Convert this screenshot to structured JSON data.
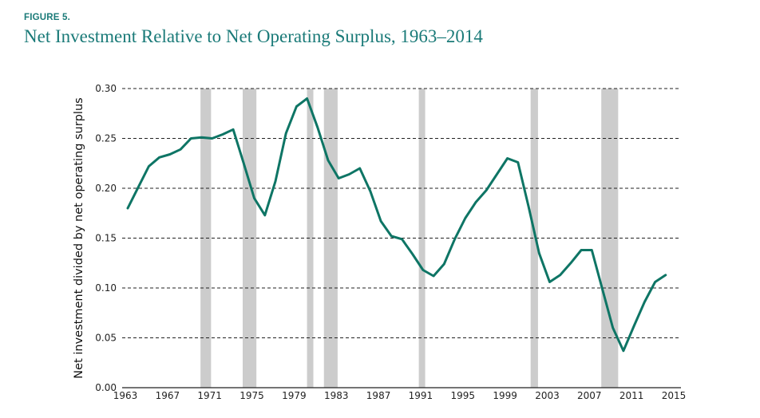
{
  "figure_label": "FIGURE 5.",
  "title": "Net Investment Relative to Net Operating Surplus, 1963–2014",
  "colors": {
    "title": "#1a7a78",
    "line": "#0e7565",
    "recession": "#cccccc",
    "grid": "#222222"
  },
  "chart_data": {
    "type": "line",
    "title": "Net Investment Relative to Net Operating Surplus, 1963–2014",
    "xlabel": "",
    "ylabel": "Net investment divided by net operating surplus",
    "xlim": [
      1963,
      2015
    ],
    "ylim": [
      0,
      0.3
    ],
    "grid": "horizontal dashed",
    "x_ticks": [
      1963,
      1967,
      1971,
      1975,
      1979,
      1983,
      1987,
      1991,
      1995,
      1999,
      2003,
      2007,
      2011,
      2015
    ],
    "x_tick_labels": [
      "1963",
      "1967",
      "1971",
      "1975",
      "1979",
      "1983",
      "1987",
      "1991",
      "1995",
      "1999",
      "2003",
      "2007",
      "2011",
      "2015"
    ],
    "y_ticks": [
      0,
      0.05,
      0.1,
      0.15,
      0.2,
      0.25,
      0.3
    ],
    "y_tick_labels": [
      "0.00",
      "0.05",
      "0.10",
      "0.15",
      "0.20",
      "0.25",
      "0.30"
    ],
    "recessions": [
      [
        1969.9,
        1970.9
      ],
      [
        1973.9,
        1975.2
      ],
      [
        1980.0,
        1980.6
      ],
      [
        1981.6,
        1982.9
      ],
      [
        1990.6,
        1991.2
      ],
      [
        2001.2,
        2001.9
      ],
      [
        2007.9,
        2009.5
      ]
    ],
    "series": [
      {
        "name": "Net investment / net operating surplus",
        "x": [
          1963,
          1964,
          1965,
          1966,
          1967,
          1968,
          1969,
          1970,
          1971,
          1972,
          1973,
          1974,
          1975,
          1976,
          1977,
          1978,
          1979,
          1980,
          1981,
          1982,
          1983,
          1984,
          1985,
          1986,
          1987,
          1988,
          1989,
          1990,
          1991,
          1992,
          1993,
          1994,
          1995,
          1996,
          1997,
          1998,
          1999,
          2000,
          2001,
          2002,
          2003,
          2004,
          2005,
          2006,
          2007,
          2008,
          2009,
          2010,
          2011,
          2012,
          2013,
          2014
        ],
        "values": [
          0.18,
          0.201,
          0.222,
          0.231,
          0.234,
          0.239,
          0.25,
          0.251,
          0.25,
          0.254,
          0.259,
          0.225,
          0.19,
          0.173,
          0.207,
          0.255,
          0.282,
          0.29,
          0.261,
          0.228,
          0.21,
          0.214,
          0.22,
          0.197,
          0.167,
          0.152,
          0.149,
          0.134,
          0.118,
          0.112,
          0.124,
          0.149,
          0.17,
          0.186,
          0.198,
          0.214,
          0.23,
          0.226,
          0.182,
          0.135,
          0.106,
          0.113,
          0.125,
          0.138,
          0.138,
          0.099,
          0.06,
          0.037,
          0.062,
          0.086,
          0.106,
          0.113
        ]
      }
    ]
  }
}
